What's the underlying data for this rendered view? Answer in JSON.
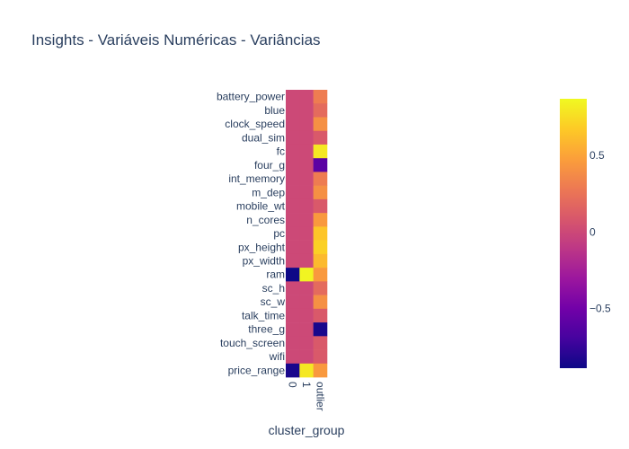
{
  "chart_data": {
    "type": "heatmap",
    "title": "Insights - Variáveis Numéricas - Variâncias",
    "xlabel": "cluster_group",
    "ylabel": "",
    "x": [
      "0",
      "1",
      "outlier"
    ],
    "y": [
      "battery_power",
      "blue",
      "clock_speed",
      "dual_sim",
      "fc",
      "four_g",
      "int_memory",
      "m_dep",
      "mobile_wt",
      "n_cores",
      "pc",
      "px_height",
      "px_width",
      "ram",
      "sc_h",
      "sc_w",
      "talk_time",
      "three_g",
      "touch_screen",
      "wifi",
      "price_range"
    ],
    "z": [
      [
        0.0,
        0.0,
        0.3
      ],
      [
        0.0,
        0.0,
        0.2
      ],
      [
        0.0,
        0.0,
        0.4
      ],
      [
        0.0,
        0.0,
        0.1
      ],
      [
        0.0,
        0.0,
        0.8
      ],
      [
        0.0,
        0.0,
        -0.6
      ],
      [
        0.0,
        0.0,
        0.3
      ],
      [
        0.0,
        0.0,
        0.4
      ],
      [
        0.0,
        0.0,
        0.1
      ],
      [
        0.0,
        0.0,
        0.45
      ],
      [
        0.0,
        0.0,
        0.65
      ],
      [
        0.0,
        0.0,
        0.7
      ],
      [
        0.0,
        0.0,
        0.6
      ],
      [
        -0.89,
        0.85,
        0.45
      ],
      [
        0.0,
        0.0,
        0.2
      ],
      [
        0.0,
        0.0,
        0.4
      ],
      [
        0.0,
        0.0,
        0.1
      ],
      [
        0.0,
        0.0,
        -0.85
      ],
      [
        0.0,
        0.0,
        0.1
      ],
      [
        0.0,
        0.0,
        0.1
      ],
      [
        -0.85,
        0.8,
        0.45
      ]
    ],
    "zmin": -0.89,
    "zmax": 0.87,
    "colorbar_ticks": [
      0.5,
      0,
      -0.5
    ],
    "colorbar_tick_labels": [
      "0.5",
      "0",
      "−0.5"
    ],
    "colorscale": [
      "#0d0887",
      "#46039f",
      "#7201a8",
      "#9c179e",
      "#bd3786",
      "#d8576b",
      "#ed7953",
      "#fb9f3a",
      "#fdca26",
      "#f0f921"
    ]
  }
}
